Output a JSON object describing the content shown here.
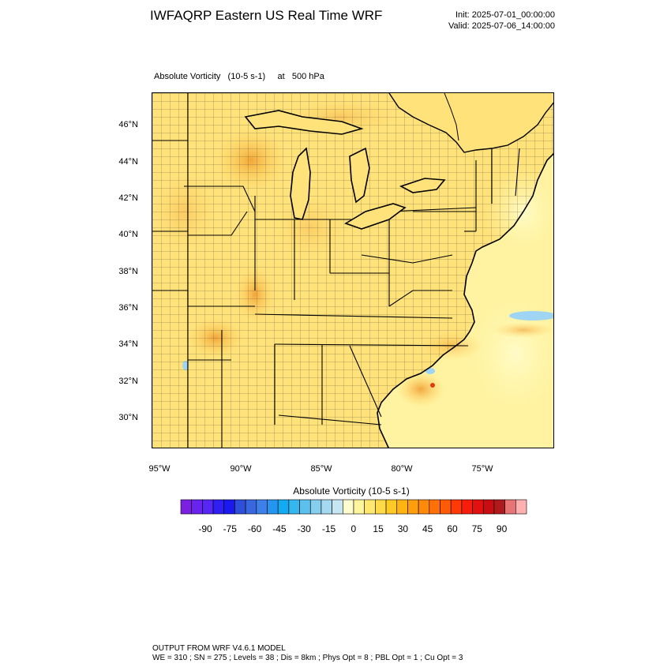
{
  "header": {
    "title": "IWFAQRP Eastern US Real Time WRF",
    "init": "Init: 2025-07-01_00:00:00",
    "valid": "Valid: 2025-07-06_14:00:00"
  },
  "field": {
    "label": "Absolute Vorticity   (10-5 s-1)     at   500 hPa"
  },
  "map": {
    "lat_labels": [
      "46°N",
      "44°N",
      "42°N",
      "40°N",
      "38°N",
      "36°N",
      "34°N",
      "32°N",
      "30°N"
    ],
    "lon_labels": [
      "95°W",
      "90°W",
      "85°W",
      "80°W",
      "75°W"
    ],
    "extent": {
      "west_lon": -95.5,
      "east_lon": -70.5,
      "south_lat": 28.5,
      "north_lat": 47.8
    }
  },
  "colorbar": {
    "title": "Absolute Vorticity  (10-5 s-1)",
    "tick_labels": [
      "-90",
      "-75",
      "-60",
      "-45",
      "-30",
      "-15",
      "0",
      "15",
      "30",
      "45",
      "60",
      "75",
      "90"
    ],
    "colors": [
      "#7b1fe0",
      "#6a22ee",
      "#5626f5",
      "#2f1ff2",
      "#1a1aef",
      "#2f4fd8",
      "#3867e0",
      "#3e80ea",
      "#2596f0",
      "#12aaf0",
      "#35b6ee",
      "#5cc0ec",
      "#86cdee",
      "#a5d9f0",
      "#c6e6f4",
      "#fffdd0",
      "#fff59c",
      "#ffe770",
      "#ffda48",
      "#ffc926",
      "#ffb414",
      "#ff9e0c",
      "#ff8a0a",
      "#ff7108",
      "#ff5a06",
      "#ff3a06",
      "#f81d0a",
      "#e2100e",
      "#c80e12",
      "#b01a1c",
      "#e87476",
      "#ffb0b0"
    ]
  },
  "footer": {
    "line1": "OUTPUT FROM WRF V4.6.1 MODEL",
    "line2": "WE = 310 ; SN = 275 ; Levels = 38 ; Dis = 8km ; Phys Opt = 8 ; PBL Opt = 1 ; Cu Opt = 3"
  }
}
